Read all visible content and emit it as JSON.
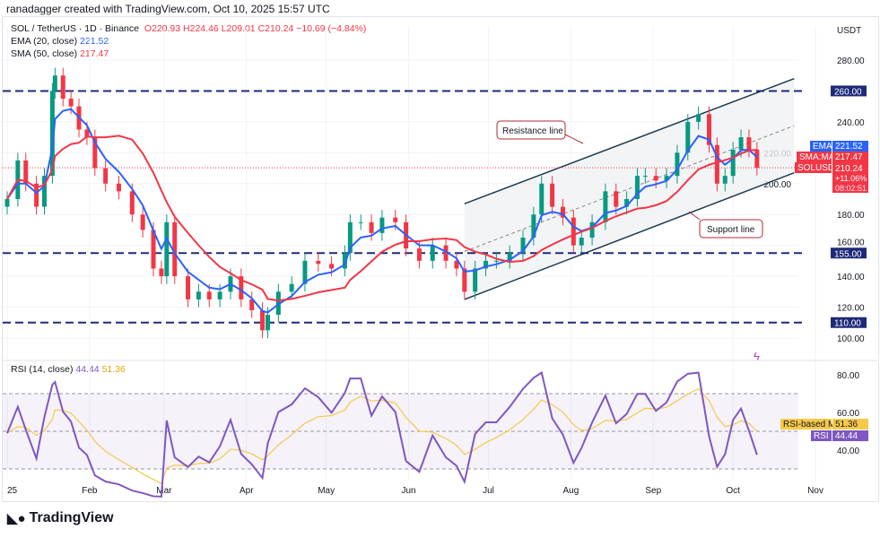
{
  "credit": "ranadagger created with TradingView.com, Oct 10, 2025 15:57 UTC",
  "legend": {
    "symbol": "SOL / TetherUS · 1D · Binance",
    "open": "O220.93",
    "high": "H224.46",
    "low": "L209.01",
    "close": "C210.24",
    "change": "−10.69 (−4.84%)",
    "ema_label": "EMA (20, close)",
    "ema_value": "221.52",
    "sma_label": "SMA (50, close)",
    "sma_value": "217.47",
    "rsi_label": "RSI (14, close)",
    "rsi_value": "44.44",
    "rsi_ma_value": "51.36"
  },
  "currency": "USDT",
  "badges": {
    "ema": "EMA",
    "ema_value": "221.52",
    "sma": "SMA:MA",
    "sma_value": "217.47",
    "sym": "SOLUSDT",
    "price": "210.24",
    "pct": "+11.06%",
    "countdown": "08:02:51",
    "rsi_ma": "RSI-based MA",
    "rsi_ma_value": "51.36",
    "rsi": "RSI",
    "rsi_value": "44.44"
  },
  "annotations": {
    "resistance": "Resistance line",
    "support": "Support line"
  },
  "logo": "TradingView",
  "colors": {
    "up": "#089981",
    "down": "#f23645",
    "ema": "#2962ff",
    "sma": "#f23645",
    "level": "#1e2a78",
    "rsi": "#7e57c2",
    "rsi_ma": "#f7c948"
  },
  "chart_data": {
    "type": "candlestick",
    "price_ticks": [
      280,
      260,
      240,
      220,
      200,
      180,
      160,
      140,
      120,
      100
    ],
    "price_tick_labels": [
      "280.00",
      "240.00",
      "220.00",
      "200.00",
      "180.00",
      "160.00",
      "140.00",
      "120.00",
      "100.00"
    ],
    "x_ticks": [
      "25",
      "Feb",
      "Mar",
      "Apr",
      "May",
      "Jun",
      "Jul",
      "Aug",
      "Sep",
      "Oct",
      "Nov"
    ],
    "levels": [
      {
        "value": 260,
        "label": "260.00"
      },
      {
        "value": 155,
        "label": "155.00"
      },
      {
        "value": 110,
        "label": "110.00"
      }
    ],
    "rsi_ticks": [
      "80.00",
      "60.00",
      "40.00"
    ],
    "closes": [
      [
        "2025-01-01",
        190
      ],
      [
        "2025-01-05",
        215
      ],
      [
        "2025-01-08",
        200
      ],
      [
        "2025-01-12",
        185
      ],
      [
        "2025-01-15",
        205
      ],
      [
        "2025-01-18",
        260
      ],
      [
        "2025-01-19",
        270
      ],
      [
        "2025-01-22",
        255
      ],
      [
        "2025-01-25",
        250
      ],
      [
        "2025-01-28",
        235
      ],
      [
        "2025-01-31",
        230
      ],
      [
        "2025-02-03",
        210
      ],
      [
        "2025-02-07",
        200
      ],
      [
        "2025-02-12",
        195
      ],
      [
        "2025-02-17",
        180
      ],
      [
        "2025-02-21",
        170
      ],
      [
        "2025-02-25",
        145
      ],
      [
        "2025-02-28",
        140
      ],
      [
        "2025-03-02",
        175
      ],
      [
        "2025-03-05",
        140
      ],
      [
        "2025-03-10",
        125
      ],
      [
        "2025-03-14",
        130
      ],
      [
        "2025-03-18",
        125
      ],
      [
        "2025-03-22",
        130
      ],
      [
        "2025-03-26",
        140
      ],
      [
        "2025-03-30",
        125
      ],
      [
        "2025-04-03",
        118
      ],
      [
        "2025-04-07",
        105
      ],
      [
        "2025-04-09",
        115
      ],
      [
        "2025-04-13",
        130
      ],
      [
        "2025-04-18",
        135
      ],
      [
        "2025-04-23",
        150
      ],
      [
        "2025-04-28",
        148
      ],
      [
        "2025-05-03",
        145
      ],
      [
        "2025-05-08",
        155
      ],
      [
        "2025-05-10",
        175
      ],
      [
        "2025-05-14",
        175
      ],
      [
        "2025-05-18",
        168
      ],
      [
        "2025-05-22",
        178
      ],
      [
        "2025-05-27",
        175
      ],
      [
        "2025-05-31",
        158
      ],
      [
        "2025-06-05",
        150
      ],
      [
        "2025-06-10",
        160
      ],
      [
        "2025-06-15",
        150
      ],
      [
        "2025-06-19",
        145
      ],
      [
        "2025-06-22",
        130
      ],
      [
        "2025-06-26",
        145
      ],
      [
        "2025-06-30",
        150
      ],
      [
        "2025-07-04",
        150
      ],
      [
        "2025-07-09",
        155
      ],
      [
        "2025-07-14",
        165
      ],
      [
        "2025-07-18",
        180
      ],
      [
        "2025-07-21",
        200
      ],
      [
        "2025-07-25",
        185
      ],
      [
        "2025-07-29",
        178
      ],
      [
        "2025-08-02",
        160
      ],
      [
        "2025-08-05",
        165
      ],
      [
        "2025-08-09",
        175
      ],
      [
        "2025-08-14",
        195
      ],
      [
        "2025-08-18",
        185
      ],
      [
        "2025-08-22",
        190
      ],
      [
        "2025-08-26",
        205
      ],
      [
        "2025-08-29",
        205
      ],
      [
        "2025-09-02",
        202
      ],
      [
        "2025-09-06",
        205
      ],
      [
        "2025-09-10",
        220
      ],
      [
        "2025-09-14",
        240
      ],
      [
        "2025-09-18",
        245
      ],
      [
        "2025-09-22",
        225
      ],
      [
        "2025-09-25",
        200
      ],
      [
        "2025-09-28",
        205
      ],
      [
        "2025-10-01",
        222
      ],
      [
        "2025-10-04",
        230
      ],
      [
        "2025-10-07",
        222
      ],
      [
        "2025-10-10",
        210.24
      ]
    ],
    "channel": {
      "upper": [
        [
          "2025-06-22",
          187
        ],
        [
          "2025-10-24",
          268
        ]
      ],
      "lower": [
        [
          "2025-06-22",
          125
        ],
        [
          "2025-10-24",
          207
        ]
      ]
    }
  }
}
